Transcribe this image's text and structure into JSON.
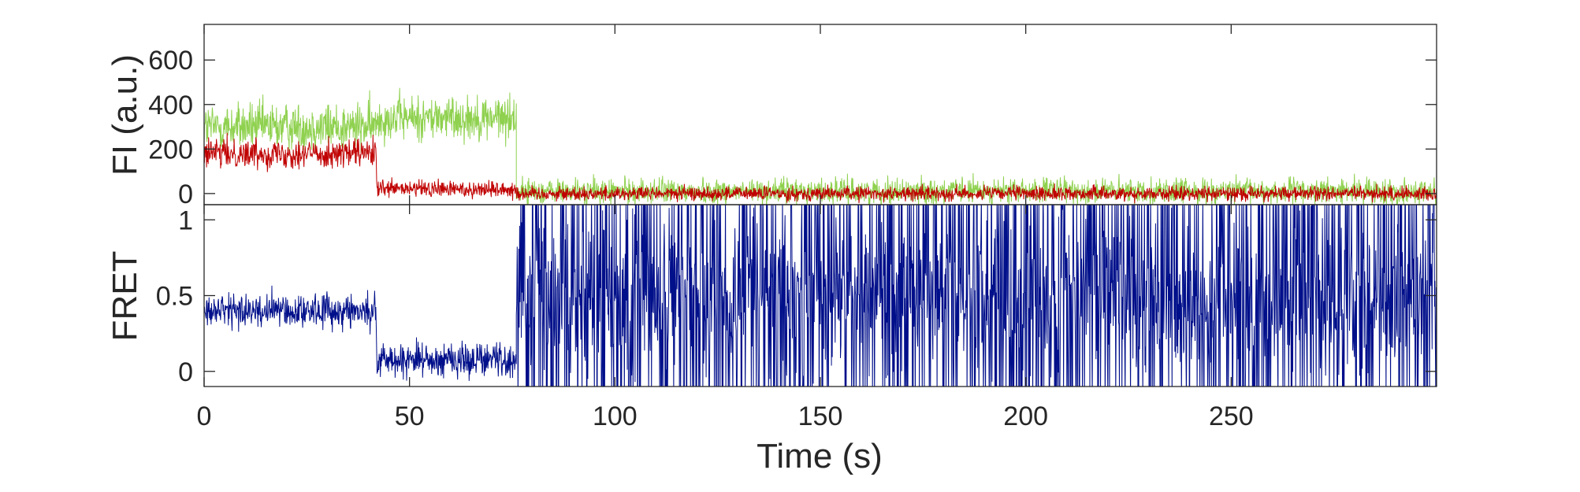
{
  "chart_data": [
    {
      "type": "line",
      "panel": "fluorescence",
      "ylabel": "FI (a.u.)",
      "xlabel": "",
      "xlim": [
        0,
        300
      ],
      "ylim": [
        -50,
        760
      ],
      "xticks": [
        0,
        50,
        100,
        150,
        200,
        250
      ],
      "yticks": [
        0,
        200,
        400,
        600
      ],
      "ytick_labels": [
        "0",
        "200",
        "400",
        "600"
      ],
      "grid": false,
      "series": [
        {
          "color": "#8fd14f",
          "segments": [
            {
              "t_start": 0,
              "t_end": 42,
              "mean": 300,
              "noise": 75
            },
            {
              "t_start": 42,
              "t_end": 76,
              "mean": 340,
              "noise": 70
            },
            {
              "t_start": 76,
              "t_end": 300,
              "mean": 10,
              "noise": 40
            }
          ]
        },
        {
          "color": "#c00000",
          "segments": [
            {
              "t_start": 0,
              "t_end": 42,
              "mean": 180,
              "noise": 45
            },
            {
              "t_start": 42,
              "t_end": 76,
              "mean": 20,
              "noise": 28
            },
            {
              "t_start": 76,
              "t_end": 300,
              "mean": 0,
              "noise": 22
            }
          ]
        }
      ]
    },
    {
      "type": "line",
      "panel": "fret",
      "ylabel": "FRET",
      "xlabel": "Time (s)",
      "xlim": [
        0,
        300
      ],
      "ylim": [
        -0.1,
        1.1
      ],
      "xticks": [
        0,
        50,
        100,
        150,
        200,
        250
      ],
      "xtick_labels": [
        "0",
        "50",
        "100",
        "150",
        "200",
        "250"
      ],
      "yticks": [
        0,
        0.5,
        1
      ],
      "ytick_labels": [
        "0",
        "0.5",
        "1"
      ],
      "grid": false,
      "series": [
        {
          "color": "#000f8a",
          "segments": [
            {
              "t_start": 0,
              "t_end": 42,
              "mean": 0.4,
              "noise": 0.08
            },
            {
              "t_start": 42,
              "t_end": 76,
              "mean": 0.08,
              "noise": 0.08
            },
            {
              "t_start": 76,
              "t_end": 300,
              "mean": 0.5,
              "noise": 0.6
            }
          ]
        }
      ]
    }
  ]
}
